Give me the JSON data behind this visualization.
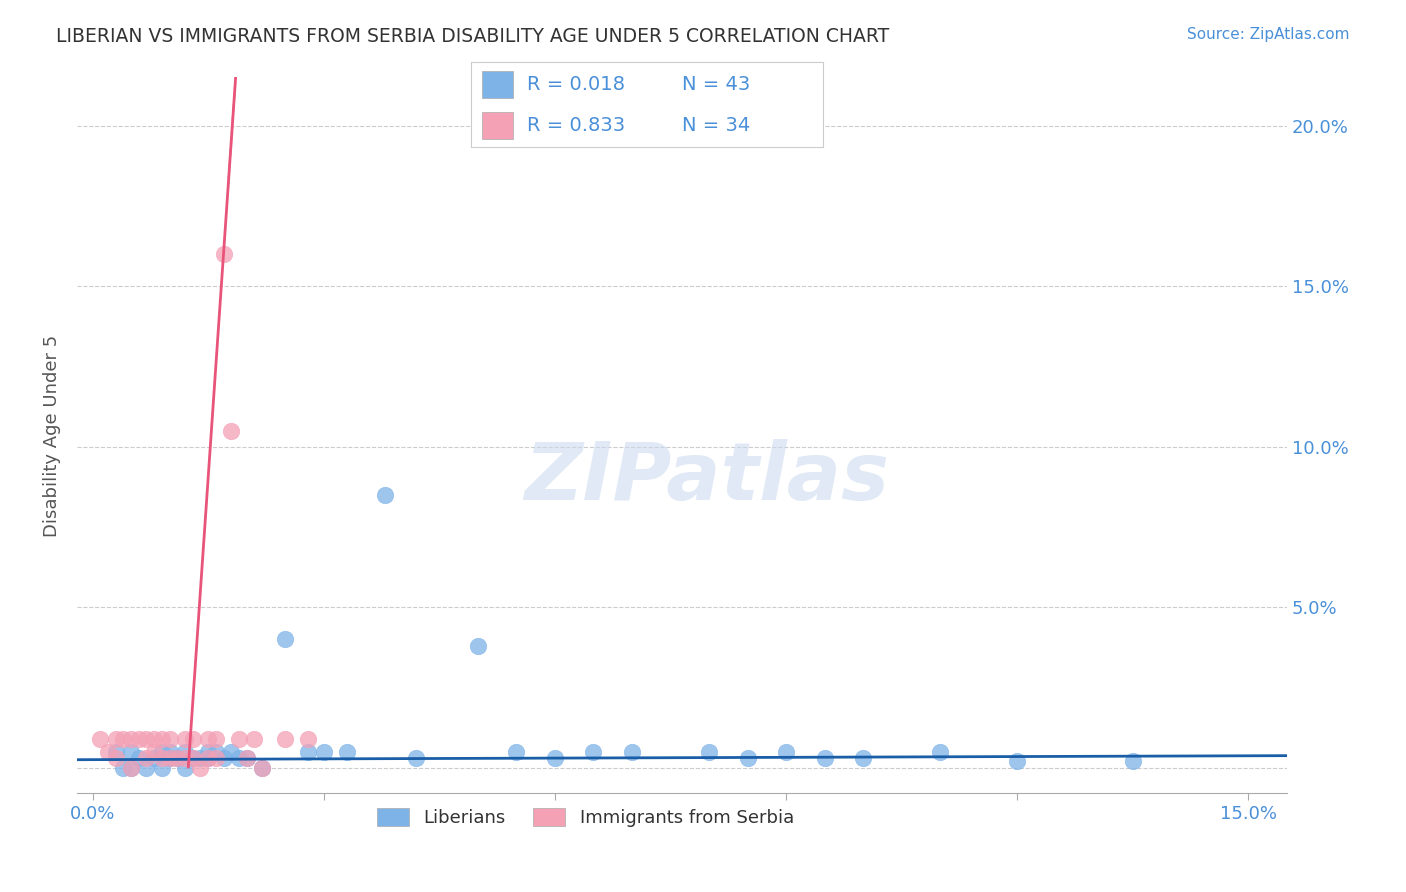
{
  "title": "LIBERIAN VS IMMIGRANTS FROM SERBIA DISABILITY AGE UNDER 5 CORRELATION CHART",
  "source": "Source: ZipAtlas.com",
  "ylabel": "Disability Age Under 5",
  "xlim": [
    -0.002,
    0.155
  ],
  "ylim": [
    -0.008,
    0.215
  ],
  "ytick_positions": [
    0.0,
    0.05,
    0.1,
    0.15,
    0.2
  ],
  "ytick_labels_right": [
    "",
    "5.0%",
    "10.0%",
    "15.0%",
    "20.0%"
  ],
  "xtick_positions": [
    0.0,
    0.03,
    0.06,
    0.09,
    0.12,
    0.15
  ],
  "xtick_labels": [
    "0.0%",
    "",
    "",
    "",
    "",
    "15.0%"
  ],
  "R_blue": 0.018,
  "N_blue": 43,
  "R_pink": 0.833,
  "N_pink": 34,
  "blue_color": "#7EB3E8",
  "pink_color": "#F4A0B5",
  "blue_line_color": "#1A5EA8",
  "pink_line_color": "#E8547A",
  "grid_color": "#CCCCCC",
  "title_color": "#333333",
  "axis_label_color": "#4A90D9",
  "blue_x": [
    0.003,
    0.004,
    0.005,
    0.005,
    0.006,
    0.007,
    0.008,
    0.009,
    0.009,
    0.01,
    0.01,
    0.011,
    0.012,
    0.012,
    0.013,
    0.014,
    0.015,
    0.015,
    0.016,
    0.017,
    0.018,
    0.019,
    0.02,
    0.022,
    0.025,
    0.028,
    0.03,
    0.033,
    0.038,
    0.042,
    0.05,
    0.055,
    0.06,
    0.065,
    0.07,
    0.08,
    0.085,
    0.09,
    0.095,
    0.1,
    0.11,
    0.12,
    0.135
  ],
  "blue_y": [
    0.005,
    0.0,
    0.005,
    0.0,
    0.003,
    0.0,
    0.003,
    0.005,
    0.0,
    0.005,
    0.003,
    0.003,
    0.005,
    0.0,
    0.003,
    0.003,
    0.005,
    0.003,
    0.005,
    0.003,
    0.005,
    0.003,
    0.003,
    0.0,
    0.04,
    0.005,
    0.005,
    0.005,
    0.085,
    0.003,
    0.038,
    0.005,
    0.003,
    0.005,
    0.005,
    0.005,
    0.003,
    0.005,
    0.003,
    0.003,
    0.005,
    0.002,
    0.002
  ],
  "pink_x": [
    0.001,
    0.002,
    0.003,
    0.003,
    0.004,
    0.005,
    0.005,
    0.006,
    0.007,
    0.007,
    0.008,
    0.008,
    0.009,
    0.009,
    0.01,
    0.01,
    0.011,
    0.012,
    0.012,
    0.013,
    0.013,
    0.014,
    0.015,
    0.015,
    0.016,
    0.016,
    0.017,
    0.018,
    0.019,
    0.02,
    0.021,
    0.022,
    0.025,
    0.028
  ],
  "pink_y": [
    0.009,
    0.005,
    0.009,
    0.003,
    0.009,
    0.009,
    0.0,
    0.009,
    0.003,
    0.009,
    0.009,
    0.005,
    0.009,
    0.003,
    0.009,
    0.003,
    0.003,
    0.009,
    0.003,
    0.003,
    0.009,
    0.0,
    0.009,
    0.003,
    0.009,
    0.003,
    0.16,
    0.105,
    0.009,
    0.003,
    0.009,
    0.0,
    0.009,
    0.009
  ],
  "blue_slope": 0.008,
  "blue_intercept": 0.0025,
  "pink_slope": 35.0,
  "pink_intercept": -0.435
}
